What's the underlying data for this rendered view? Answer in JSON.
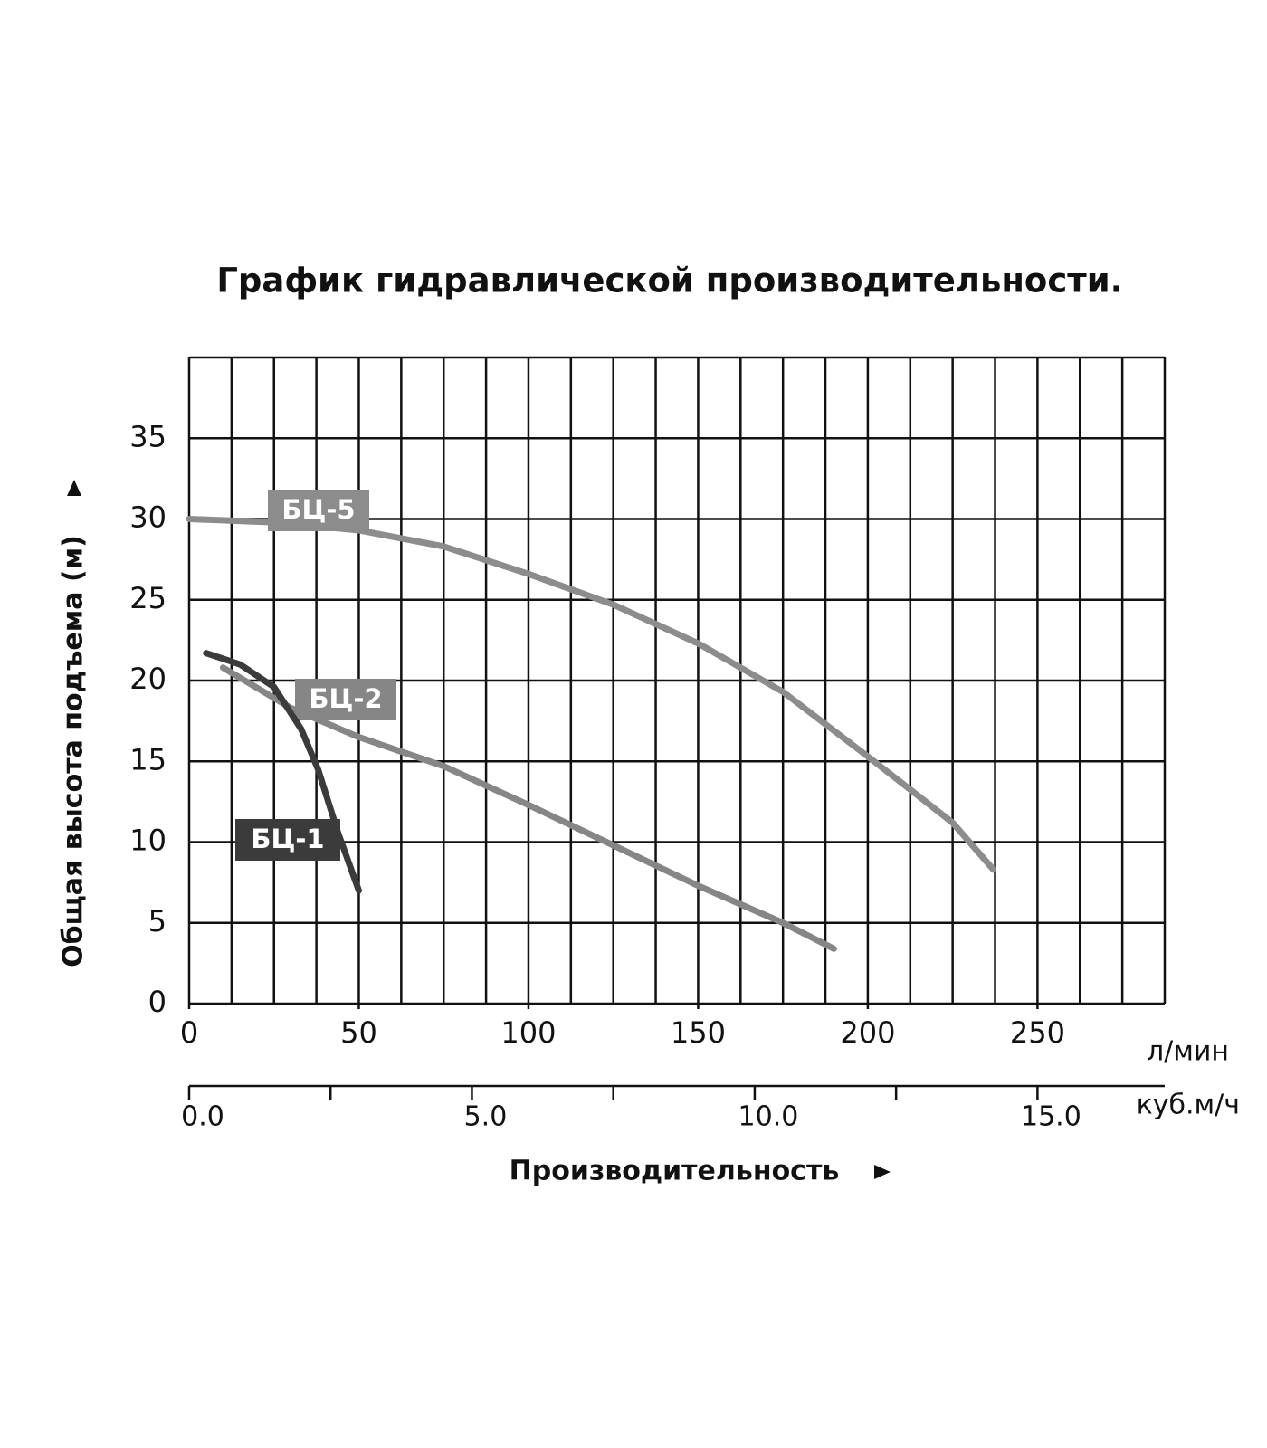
{
  "chart_data": {
    "type": "line",
    "title": "График гидравлической производительности.",
    "x_label": "Производительность",
    "y_label": "Общая высота подъема (м)",
    "x_unit": "л/мин",
    "x2_unit": "куб.м/ч",
    "xlim": [
      0,
      287.5
    ],
    "xticks": [
      0,
      50,
      100,
      150,
      200,
      250
    ],
    "x_grid_step": 12.5,
    "x2lim": [
      0,
      17.25
    ],
    "x2ticks": [
      {
        "value": 0,
        "label": "0.0"
      },
      {
        "value": 5,
        "label": "5.0"
      },
      {
        "value": 10,
        "label": "10.0"
      },
      {
        "value": 15,
        "label": "15.0"
      }
    ],
    "x2minor_ticks": [
      2.5,
      7.5,
      12.5
    ],
    "ylim": [
      0,
      40
    ],
    "yticks": [
      0,
      5,
      10,
      15,
      20,
      25,
      30,
      35
    ],
    "grid": true,
    "series": [
      {
        "name": "БЦ-5",
        "color": "#8c8c8c",
        "x": [
          0,
          25,
          50,
          75,
          100,
          125,
          150,
          175,
          200,
          225,
          237
        ],
        "values": [
          30,
          29.8,
          29.3,
          28.3,
          26.6,
          24.7,
          22.3,
          19.3,
          15.3,
          11.2,
          8.3
        ]
      },
      {
        "name": "БЦ-2",
        "color": "#868686",
        "x": [
          10,
          30,
          50,
          75,
          100,
          125,
          150,
          175,
          190
        ],
        "values": [
          20.8,
          18.3,
          16.5,
          14.7,
          12.3,
          9.8,
          7.3,
          5,
          3.4
        ]
      },
      {
        "name": "БЦ-1",
        "color": "#3b3b3b",
        "x": [
          5,
          15,
          25,
          33,
          38,
          44,
          50
        ],
        "values": [
          21.7,
          21,
          19.6,
          17,
          14.5,
          10.5,
          7
        ]
      }
    ]
  }
}
